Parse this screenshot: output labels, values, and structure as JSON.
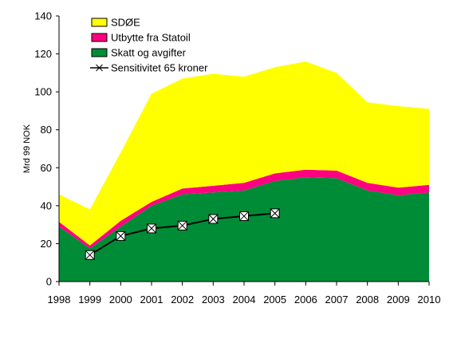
{
  "chart_data": {
    "type": "area",
    "xlabel": "",
    "ylabel": "Mrd 99 NOK",
    "x": [
      1998,
      1999,
      2000,
      2001,
      2002,
      2003,
      2004,
      2005,
      2006,
      2007,
      2008,
      2009,
      2010
    ],
    "x_tick_labels": [
      "1998",
      "1999",
      "2000",
      "2001",
      "2002",
      "2003",
      "2004",
      "2005",
      "2006",
      "2007",
      "2008",
      "2009",
      "2010"
    ],
    "ylim": [
      0,
      140
    ],
    "y_ticks": [
      0,
      20,
      40,
      60,
      80,
      100,
      120,
      140
    ],
    "y_tick_labels": [
      "0",
      "20",
      "40",
      "60",
      "80",
      "100",
      "120",
      "140"
    ],
    "grid": false,
    "legend_position": "top-left",
    "stacked_series": [
      {
        "name": "Skatt og avgifter",
        "color": "#008C37",
        "values": [
          29,
          17.5,
          29,
          40,
          46,
          47,
          48,
          53,
          55,
          54.5,
          48,
          45.5,
          47
        ]
      },
      {
        "name": "Utbytte fra Statoil",
        "color": "#FF0080",
        "values": [
          2.5,
          1.5,
          3,
          2,
          3,
          3.5,
          4,
          4,
          4,
          4,
          4,
          4,
          4
        ]
      },
      {
        "name": "SDØE",
        "color": "#FFFF00",
        "values": [
          14.5,
          19,
          36,
          57,
          58,
          59,
          56,
          56,
          57,
          51.5,
          42.5,
          43,
          40
        ]
      }
    ],
    "line_series": [
      {
        "name": "Sensitivitet 65 kroner",
        "color": "#000000",
        "marker": "x-box",
        "x": [
          1999,
          2000,
          2001,
          2002,
          2003,
          2004,
          2005
        ],
        "values": [
          14,
          24,
          28,
          29.5,
          33,
          34.5,
          36
        ]
      }
    ],
    "legend_order": [
      "SDØE",
      "Utbytte fra Statoil",
      "Skatt og avgifter",
      "Sensitivitet 65 kroner"
    ]
  }
}
